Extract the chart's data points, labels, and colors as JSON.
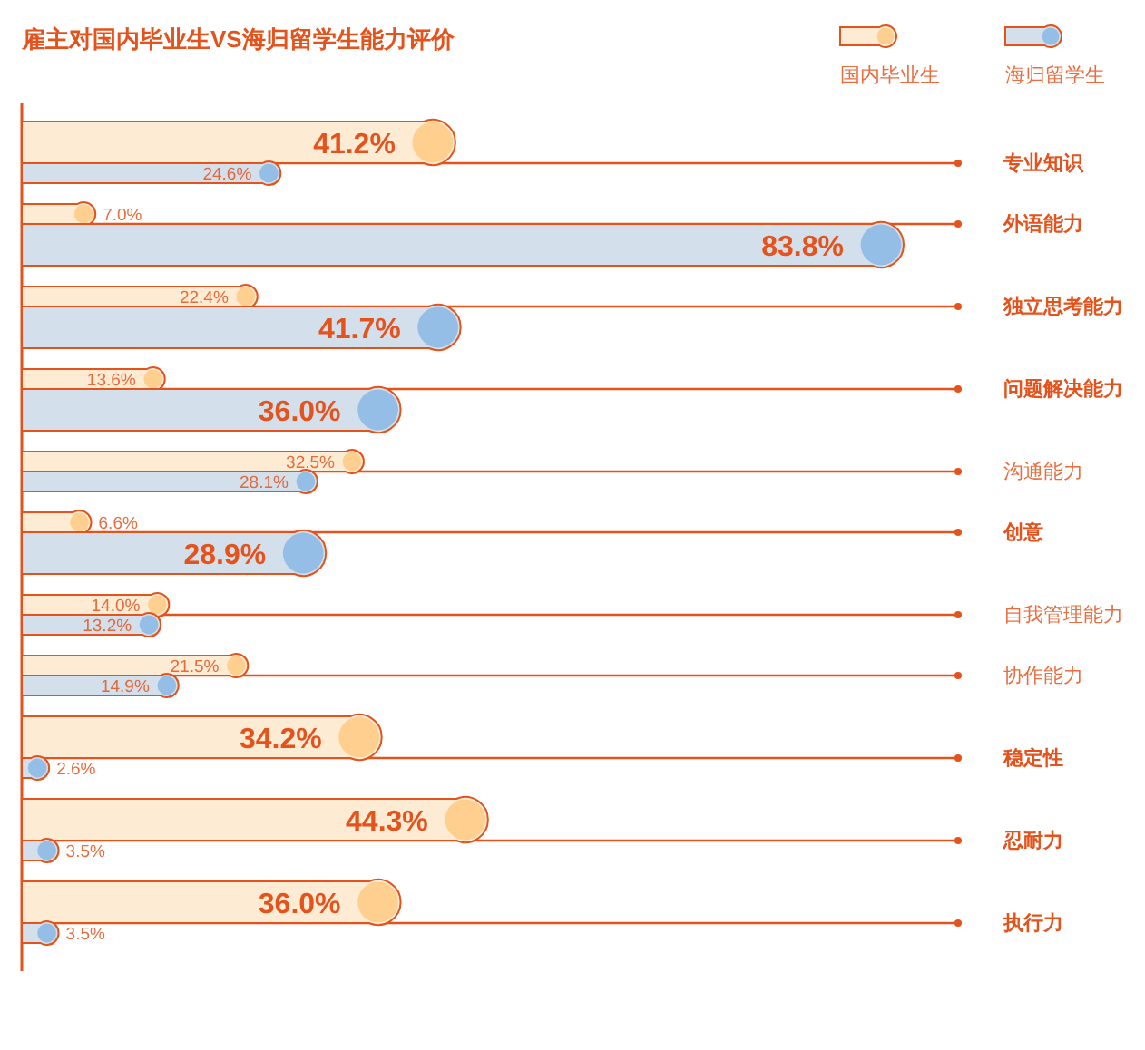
{
  "chart_data": {
    "type": "bar",
    "orientation": "horizontal",
    "title": "雇主对国内毕业生VS海归留学生能力评价",
    "categories": [
      "专业知识",
      "外语能力",
      "独立思考能力",
      "问题解决能力",
      "沟通能力",
      "创意",
      "自我管理能力",
      "协作能力",
      "稳定性",
      "忍耐力",
      "执行力"
    ],
    "series": [
      {
        "name": "国内毕业生",
        "color": "#fdebd3",
        "values": [
          41.2,
          7.0,
          22.4,
          13.6,
          32.5,
          6.6,
          14.0,
          21.5,
          34.2,
          44.3,
          36.0
        ],
        "value_labels": [
          "41.2%",
          "7.0%",
          "22.4%",
          "13.6%",
          "32.5%",
          "6.6%",
          "14.0%",
          "21.5%",
          "34.2%",
          "44.3%",
          "36.0%"
        ]
      },
      {
        "name": "海归留学生",
        "color": "#d3dfeb",
        "values": [
          24.6,
          83.8,
          41.7,
          36.0,
          28.1,
          28.9,
          13.2,
          14.9,
          2.6,
          3.5,
          3.5
        ],
        "value_labels": [
          "24.6%",
          "83.8%",
          "41.7%",
          "36.0%",
          "28.1%",
          "28.9%",
          "13.2%",
          "14.9%",
          "2.6%",
          "3.5%",
          "3.5%"
        ]
      }
    ],
    "grid": "y",
    "legend": "top right"
  }
}
